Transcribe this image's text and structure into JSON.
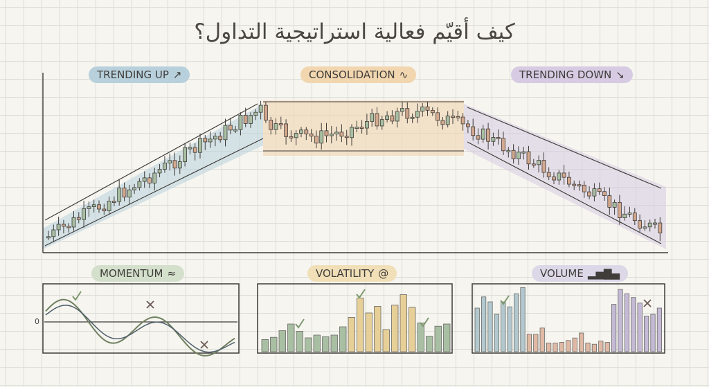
{
  "title": "كيف أقيّم فعالية استراتيجية التداول؟",
  "phases": [
    {
      "label": "TRENDING UP",
      "icon": "trend-up-arrow-icon",
      "color": "#b8d0dc"
    },
    {
      "label": "CONSOLIDATION",
      "icon": "sine-wave-icon",
      "color": "#f1d6b0"
    },
    {
      "label": "TRENDING DOWN",
      "icon": "trend-down-arrow-icon",
      "color": "#d6cbe2"
    }
  ],
  "indicators": [
    {
      "label": "MOMENTUM",
      "icon": "momentum-waves-icon",
      "color": "#d4e0cc",
      "zero_label": "0"
    },
    {
      "label": "VOLATILITY",
      "icon": "spiral-icon",
      "color": "#f1dfb8"
    },
    {
      "label": "VOLUME",
      "icon": "bar-chart-icon",
      "color": "#ddd8e8"
    }
  ],
  "colors": {
    "bull": "#a9bfa3",
    "bear": "#d3a88e",
    "ink": "#3e3c39",
    "check": "#7e9970",
    "cross": "#6b5a55"
  }
}
